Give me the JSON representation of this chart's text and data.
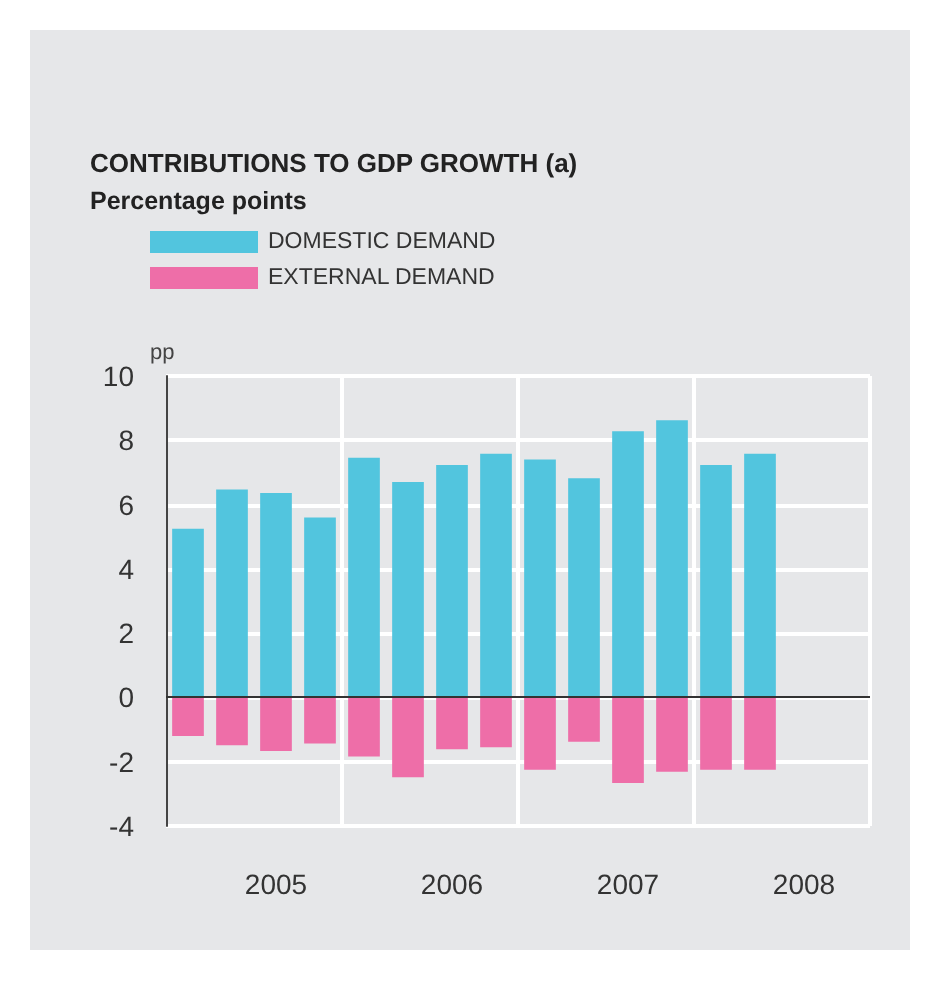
{
  "chart_data": {
    "type": "bar",
    "title": "CONTRIBUTIONS TO GDP GROWTH (a)",
    "subtitle": "Percentage points",
    "ylabel": "pp",
    "categories": [
      null,
      null,
      "2005",
      null,
      null,
      null,
      "2006",
      null,
      null,
      null,
      "2007",
      null,
      null,
      null,
      "2008",
      null
    ],
    "series": [
      {
        "name": "DOMESTIC DEMAND",
        "color": "#52c5de",
        "values": [
          5.25,
          6.47,
          6.36,
          5.6,
          7.46,
          6.7,
          7.23,
          7.58,
          7.4,
          6.82,
          8.28,
          8.62,
          7.23,
          7.58,
          null,
          null
        ]
      },
      {
        "name": "EXTERNAL DEMAND",
        "color": "#ee6ea8",
        "values": [
          -1.2,
          -1.49,
          -1.67,
          -1.43,
          -1.84,
          -2.48,
          -1.61,
          -1.55,
          -2.25,
          -1.38,
          -2.66,
          -2.31,
          -2.25,
          -2.25,
          null,
          null
        ]
      }
    ],
    "stacked": true,
    "ylim": [
      -4,
      10
    ],
    "yticks": [
      -4,
      -2,
      0,
      2,
      4,
      6,
      8,
      10
    ],
    "grid": true,
    "legend": "top left"
  }
}
